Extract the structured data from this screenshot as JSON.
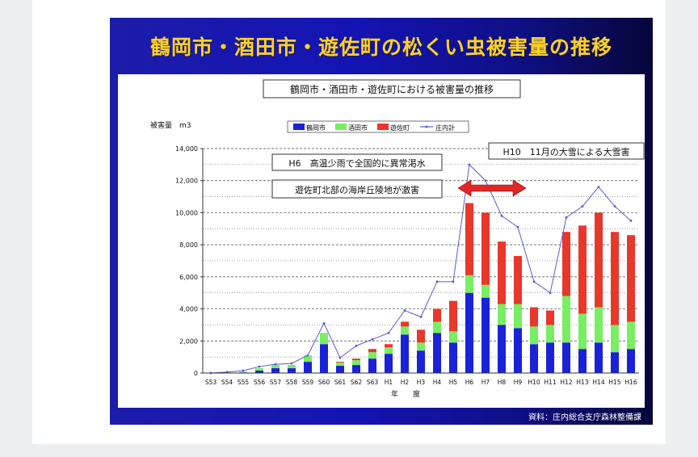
{
  "slide_title": "鶴岡市・酒田市・遊佐町の松くい虫被害量の推移",
  "source": "資料：庄内総合支庁森林整備課",
  "colors": {
    "tsuruoka": "#1a22d8",
    "sakata": "#78ee62",
    "yuza": "#e8372b",
    "total": "#5a5ad0",
    "callout_arrow": "#e22626"
  },
  "chart_data": {
    "type": "bar",
    "stacked": true,
    "title": "鶴岡市・酒田市・遊佐町における被害量の推移",
    "ylabel": "被害量　m3",
    "xlabel": "年　　度",
    "ylim": [
      0,
      14000
    ],
    "ytick_labels": [
      "0",
      "2,000",
      "4,000",
      "6,000",
      "8,000",
      "10,000",
      "12,000",
      "14,000"
    ],
    "grid": true,
    "legend_position": "top",
    "categories": [
      "S53",
      "S54",
      "S55",
      "S56",
      "S57",
      "S58",
      "S59",
      "S60",
      "S61",
      "S62",
      "S63",
      "H1",
      "H2",
      "H3",
      "H4",
      "H5",
      "H6",
      "H7",
      "H8",
      "H9",
      "H10",
      "H11",
      "H12",
      "H13",
      "H14",
      "H15",
      "H16"
    ],
    "series": [
      {
        "name": "鶴岡市",
        "color": "#1a22d8",
        "values": [
          0,
          20,
          40,
          150,
          300,
          300,
          700,
          1800,
          450,
          500,
          900,
          1200,
          2400,
          1400,
          2500,
          1900,
          5000,
          4700,
          3000,
          2800,
          1800,
          1900,
          1900,
          1500,
          1900,
          1300,
          1500
        ]
      },
      {
        "name": "酒田市",
        "color": "#78ee62",
        "values": [
          0,
          20,
          40,
          150,
          200,
          200,
          400,
          700,
          200,
          300,
          400,
          400,
          500,
          500,
          700,
          700,
          1100,
          800,
          1300,
          1500,
          1100,
          1100,
          2900,
          2200,
          2200,
          1700,
          1700
        ]
      },
      {
        "name": "遊佐町",
        "color": "#e8372b",
        "values": [
          0,
          0,
          0,
          0,
          0,
          0,
          0,
          0,
          50,
          100,
          200,
          200,
          300,
          800,
          800,
          1900,
          4500,
          4500,
          3900,
          3000,
          1200,
          900,
          4000,
          5500,
          5900,
          5800,
          5400
        ]
      }
    ],
    "line_series": {
      "name": "庄内計",
      "color": "#5a5ad0",
      "values": [
        0,
        60,
        150,
        400,
        550,
        600,
        1100,
        3100,
        950,
        1700,
        2100,
        2500,
        3900,
        3500,
        5700,
        5700,
        13000,
        12000,
        9800,
        9100,
        5700,
        5000,
        9700,
        10400,
        11600,
        10400,
        9500
      ]
    },
    "annotations": [
      "H6　高温少雨で全国的に異常渇水",
      "遊佐町北部の海岸丘陵地が激害",
      "H10　11月の大雪による大雪害"
    ]
  }
}
